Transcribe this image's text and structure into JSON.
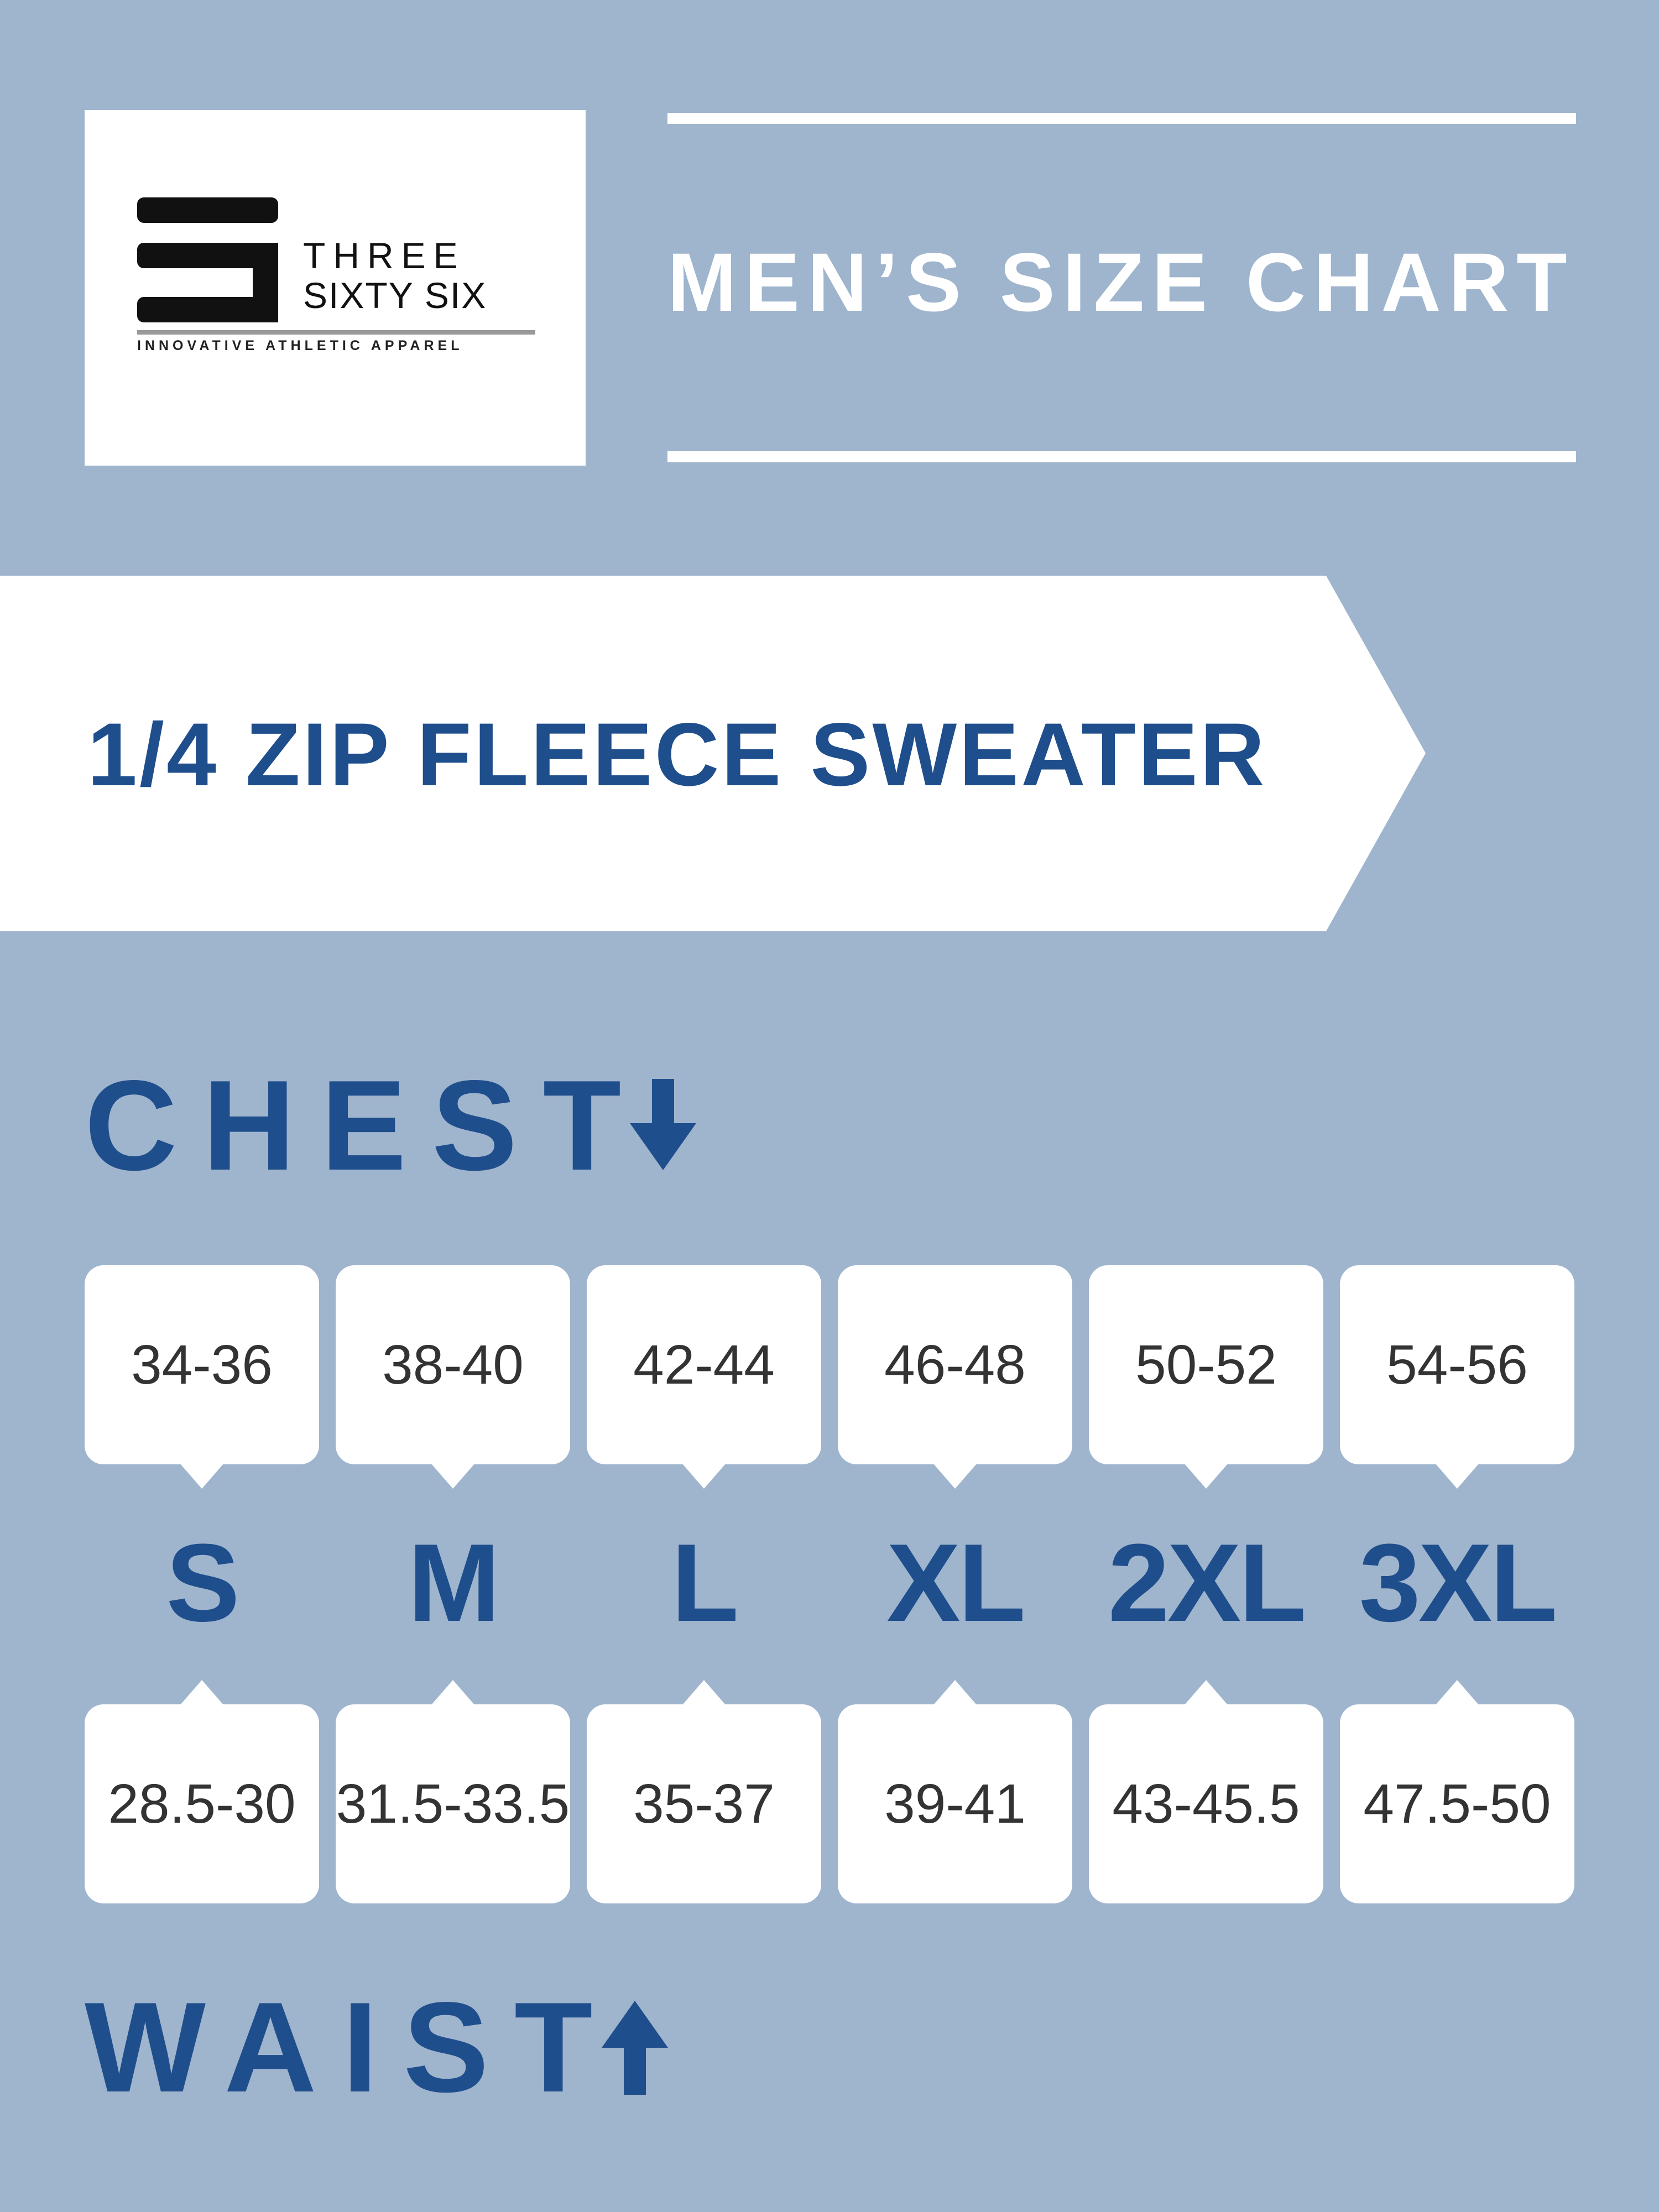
{
  "logo": {
    "line1": "THREE",
    "line2": "SIXTY SIX",
    "tagline": "INNOVATIVE ATHLETIC APPAREL"
  },
  "title": "MEN’S SIZE CHART",
  "product": "1/4 ZIP FLEECE SWEATER",
  "chest_label": "CHEST",
  "waist_label": "WAIST",
  "colors": {
    "background": "#9fb4cd",
    "accent": "#1f4e8c",
    "panel": "#ffffff"
  },
  "icons": {
    "chest": "arrow-down-icon",
    "waist": "arrow-up-icon"
  },
  "chart_data": {
    "type": "table",
    "columns": [
      "S",
      "M",
      "L",
      "XL",
      "2XL",
      "3XL"
    ],
    "rows": [
      {
        "name": "CHEST",
        "values": [
          "34-36",
          "38-40",
          "42-44",
          "46-48",
          "50-52",
          "54-56"
        ]
      },
      {
        "name": "WAIST",
        "values": [
          "28.5-30",
          "31.5-33.5",
          "35-37",
          "39-41",
          "43-45.5",
          "47.5-50"
        ]
      }
    ]
  }
}
